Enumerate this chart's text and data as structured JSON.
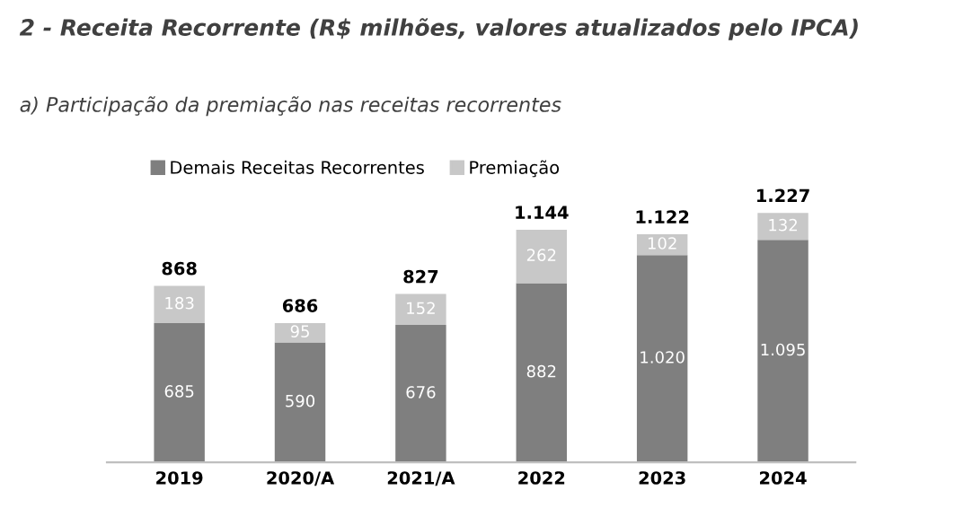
{
  "chart_data": {
    "type": "bar",
    "title": "2 - Receita Recorrente (R$ milhões, valores atualizados pelo IPCA)",
    "subtitle": "a) Participação da premiação nas receitas recorrentes",
    "categories": [
      "2019",
      "2020/A",
      "2021/A",
      "2022",
      "2023",
      "2024"
    ],
    "stacked": true,
    "legend": "top left",
    "series": [
      {
        "name": "Demais Receitas Recorrentes",
        "color": "#7f7f7f",
        "values": [
          685,
          590,
          676,
          882,
          1020,
          1095
        ],
        "value_labels": [
          "685",
          "590",
          "676",
          "882",
          "1.020",
          "1.095"
        ]
      },
      {
        "name": "Premiação",
        "color": "#c8c8c8",
        "values": [
          183,
          95,
          152,
          262,
          102,
          132
        ],
        "value_labels": [
          "183",
          "95",
          "152",
          "262",
          "102",
          "132"
        ]
      }
    ],
    "totals": [
      "868",
      "686",
      "827",
      "1.144",
      "1.122",
      "1.227"
    ]
  }
}
